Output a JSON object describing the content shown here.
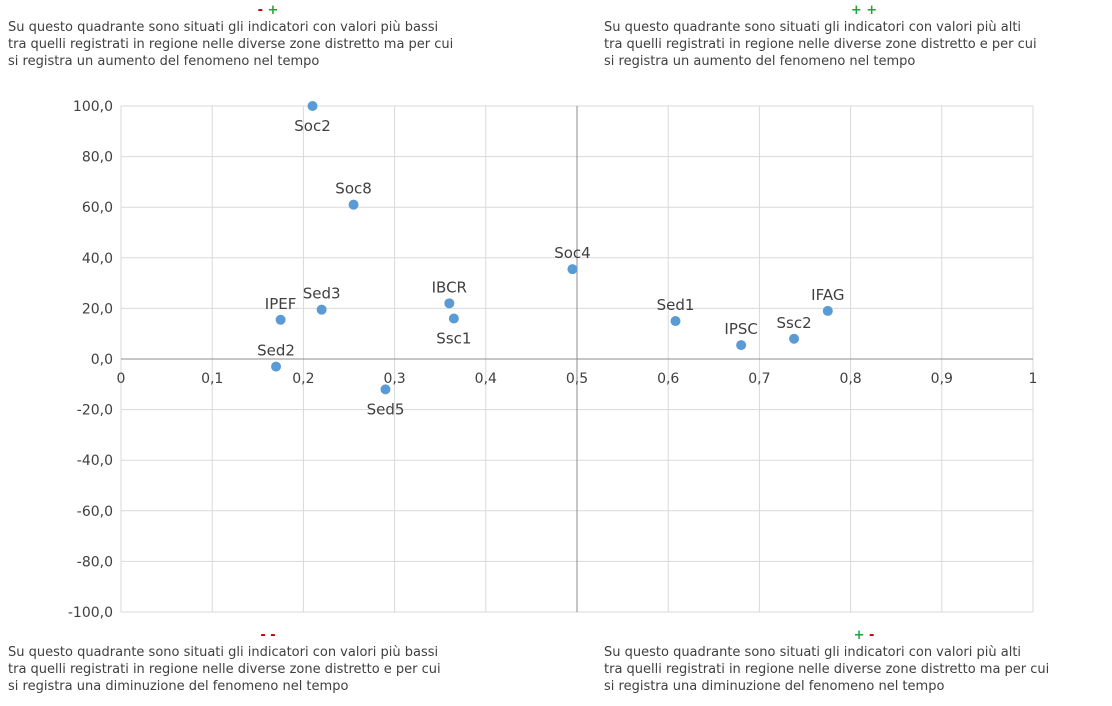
{
  "quadrants": {
    "top_left": {
      "sign_1": "-",
      "sign_2": "+",
      "lines": [
        "Su questo quadrante sono situati gli indicatori con valori più bassi",
        "tra quelli registrati in regione nelle diverse zone distretto ma per cui",
        "si registra un aumento del fenomeno nel tempo"
      ]
    },
    "top_right": {
      "sign_1": "+",
      "sign_2": "+",
      "lines": [
        "Su questo quadrante sono situati gli indicatori con valori più alti",
        "tra quelli registrati in regione nelle diverse zone distretto e per cui",
        "si registra un aumento del fenomeno nel tempo"
      ]
    },
    "bottom_left": {
      "sign_1": "-",
      "sign_2": "-",
      "lines": [
        "Su questo quadrante sono situati gli indicatori con valori più bassi",
        "tra quelli registrati in regione nelle diverse zone distretto e per cui",
        "si registra una diminuzione del fenomeno nel tempo"
      ]
    },
    "bottom_right": {
      "sign_1": "+",
      "sign_2": "-",
      "lines": [
        "Su questo quadrante sono situati gli indicatori con valori più alti",
        "tra quelli registrati in regione nelle diverse zone distretto ma per cui",
        "si registra una diminuzione del fenomeno nel tempo"
      ]
    }
  },
  "colors": {
    "point": "#5b9bd5",
    "grid": "#d9d9d9",
    "axis": "#8c8c8c",
    "negative_sign": "#c00000",
    "positive_sign": "#1fa338"
  },
  "chart_data": {
    "type": "scatter",
    "xlim": [
      0,
      1
    ],
    "ylim": [
      -100,
      100
    ],
    "x_ticks": [
      0,
      0.1,
      0.2,
      0.3,
      0.4,
      0.5,
      0.6,
      0.7,
      0.8,
      0.9,
      1
    ],
    "x_tick_labels": [
      "0",
      "0,1",
      "0,2",
      "0,3",
      "0,4",
      "0,5",
      "0,6",
      "0,7",
      "0,8",
      "0,9",
      "1"
    ],
    "y_ticks": [
      100,
      80,
      60,
      40,
      20,
      0,
      -20,
      -40,
      -60,
      -80,
      -100
    ],
    "y_tick_labels": [
      "100,0",
      "80,0",
      "60,0",
      "40,0",
      "20,0",
      "0,0",
      "-20,0",
      "-40,0",
      "-60,0",
      "-80,0",
      "-100,0"
    ],
    "x_divider": 0.5,
    "grid": true,
    "points": [
      {
        "label": "Soc2",
        "x": 0.21,
        "y": 100,
        "label_pos": "below"
      },
      {
        "label": "Soc8",
        "x": 0.255,
        "y": 61,
        "label_pos": "above"
      },
      {
        "label": "IPEF",
        "x": 0.175,
        "y": 15.5,
        "label_pos": "above"
      },
      {
        "label": "Sed3",
        "x": 0.22,
        "y": 19.5,
        "label_pos": "above"
      },
      {
        "label": "Sed2",
        "x": 0.17,
        "y": -3,
        "label_pos": "above"
      },
      {
        "label": "Sed5",
        "x": 0.29,
        "y": -12,
        "label_pos": "below"
      },
      {
        "label": "IBCR",
        "x": 0.36,
        "y": 22,
        "label_pos": "above"
      },
      {
        "label": "Ssc1",
        "x": 0.365,
        "y": 16,
        "label_pos": "below"
      },
      {
        "label": "Soc4",
        "x": 0.495,
        "y": 35.5,
        "label_pos": "above"
      },
      {
        "label": "Sed1",
        "x": 0.608,
        "y": 15,
        "label_pos": "above"
      },
      {
        "label": "IPSC",
        "x": 0.68,
        "y": 5.5,
        "label_pos": "above"
      },
      {
        "label": "Ssc2",
        "x": 0.738,
        "y": 8,
        "label_pos": "above"
      },
      {
        "label": "IFAG",
        "x": 0.775,
        "y": 19,
        "label_pos": "above"
      }
    ]
  }
}
